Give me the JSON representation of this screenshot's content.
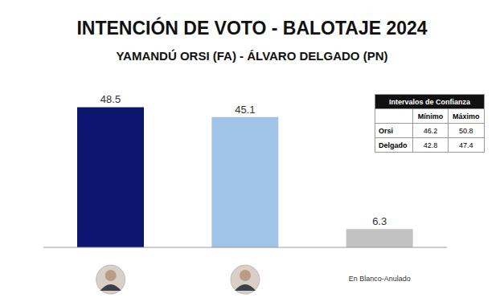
{
  "chart_data": {
    "type": "bar",
    "title": "INTENCIÓN DE VOTO - BALOTAJE 2024",
    "subtitle": "YAMANDÚ ORSI (FA) - ÁLVARO DELGADO (PN)",
    "categories": [
      null,
      null,
      "En Blanco-Anulado"
    ],
    "values": [
      48.5,
      45.1,
      6.3
    ],
    "colors": [
      "#0c1670",
      "#a0c4e8",
      "#c2c2c2"
    ],
    "ylim": [
      0,
      50
    ],
    "data_labels": true,
    "tick_labels": "x"
  },
  "table": {
    "title": "Intervalos de Confianza",
    "columns": [
      "Mínimo",
      "Máximo"
    ],
    "rows": [
      {
        "name": "Orsi",
        "values": [
          46.2,
          50.8
        ]
      },
      {
        "name": "Delgado",
        "values": [
          42.8,
          47.4
        ]
      }
    ]
  }
}
